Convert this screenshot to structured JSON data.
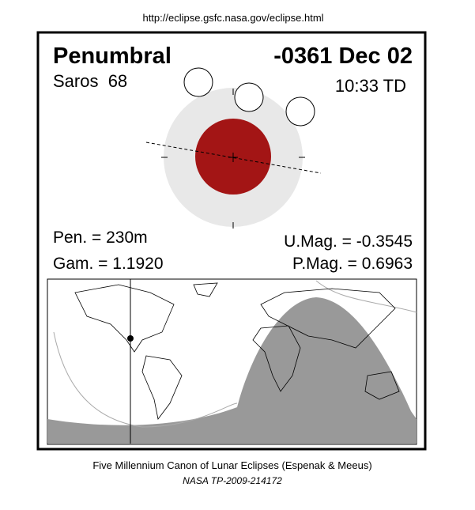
{
  "header": {
    "url": "http://eclipse.gsfc.nasa.gov/eclipse.html"
  },
  "title": {
    "type": "Penumbral",
    "date": "-0361 Dec 02"
  },
  "saros": "Saros  68",
  "time": "10:33 TD",
  "parameters": {
    "pen": "Pen. = 230m",
    "gam": "Gam. = 1.1920",
    "umag": "U.Mag. = -0.3545",
    "pmag": "P.Mag. = 0.6963"
  },
  "footer": {
    "canon": "Five Millennium Canon of Lunar Eclipses (Espenak & Meeus)",
    "report": "NASA TP-2009-214172"
  }
}
